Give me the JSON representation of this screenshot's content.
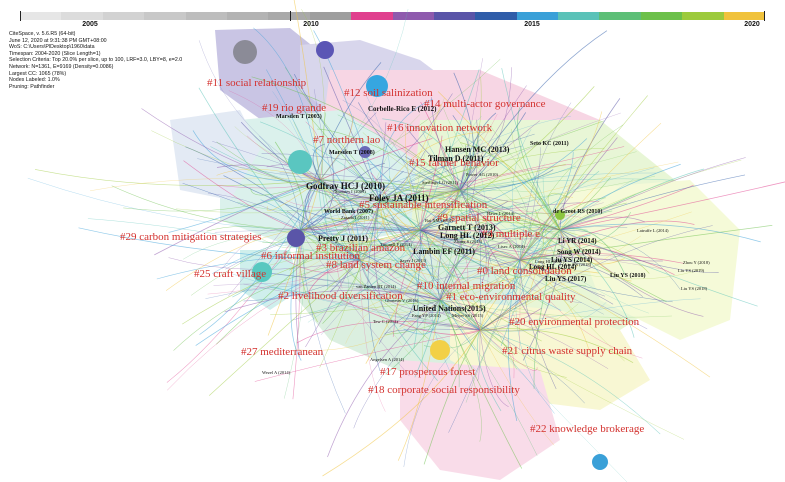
{
  "timeline": {
    "years": [
      "2005",
      "2010",
      "2015",
      "2020"
    ],
    "colors": [
      "#e6e6e6",
      "#dcdcdc",
      "#d2d2d2",
      "#c8c8c8",
      "#bdbdbd",
      "#b3b3b3",
      "#a9a9a9",
      "#9e9e9e",
      "#e0408e",
      "#8e5aad",
      "#5a55a8",
      "#2f5da9",
      "#3aa0d8",
      "#5ac2b8",
      "#5dbf77",
      "#6cc04a",
      "#9cca3c",
      "#f0c23c"
    ]
  },
  "meta_lines": [
    "CiteSpace, v. 5.6.R5 (64-bit)",
    "June 12, 2020 at 9:31:38 PM GMT+08:00",
    "WoS: C:\\Users\\PlDesktop\\1960\\data",
    "Timespan: 2004-2020 (Slice Length=1)",
    "Selection Criteria: Top 20.0% per slice, up to 100, LRF=3.0, LBY=8, e=2.0",
    "Network: N=1361, E=9169 (Density=0.0086)",
    "Largest CC: 1065 (78%)",
    "Nodes Labeled: 1.0%",
    "Pruning: Pathfinder"
  ],
  "clusters": [
    "#11 social relationship",
    "#12 soil salinization",
    "#19 rio grande",
    "#14 multi-actor governance",
    "#16 innovation network",
    "#7 northern lao",
    "#15 farmer behavior",
    "#5 sustainable intensification",
    "#9 spatial structure",
    "#4 multiple e",
    "#29 carbon mitigation strategies",
    "#3 brazilian amazon",
    "#6 informal institution",
    "#8 land system change",
    "#0 land consolidation",
    "#10 internal migration",
    "#25 craft village",
    "#2 livelihood diversification",
    "#1 eco-environmental quality",
    "#20 environmental protection",
    "#27 mediterranean",
    "#21 citrus waste supply chain",
    "#17 prosperous forest",
    "#18 corporate social responsibility",
    "#22 knowledge brokerage"
  ],
  "node_labels": [
    "Corbelle-Rico E (2012)",
    "Marsden T (2003)",
    "Marsden T (2008)",
    "Seto KC (2011)",
    "Hansen MC (2013)",
    "Tilman D (2011)",
    "Godfray HCJ (2010)",
    "Foley JA (2011)",
    "World Bank (2007)",
    "de Groot RS (2010)",
    "Pretty J (2011)",
    "Garnett T (2013)",
    "Long HL (2012)",
    "Li YR (2014)",
    "Lambin EF (2011)",
    "Song W (2014)",
    "Liu YS (2014)",
    "Long HL (2014)",
    "Liu YS (2017)",
    "Liu YS (2018)",
    "United Nations(2015)"
  ],
  "minor_labels": [
    "Power AG (2010)",
    "Sterlings LG (2011)",
    "Scoones I (2009)",
    "Zasada I (2011)",
    "Bai XM (2014)",
    "Hawe L (2014)",
    "Latruffe L (2014)",
    "Zhang S (2015)",
    "Lisec A (2014)",
    "Tittonell P (2014)",
    "Sayer J (2013)",
    "Long HL (2011)",
    "Liu YS (2018)",
    "Zhou Y (2018)",
    "Liu YS (2019)",
    "Liu YS (2018)",
    "van Zanten BT (2014)",
    "Glorieux V (2016)",
    "Fang YP (2014)",
    "Tew C (2012)",
    "Meijer SS (2015)",
    "Angelsen A (2014)",
    "Wezel A (2014)"
  ]
}
